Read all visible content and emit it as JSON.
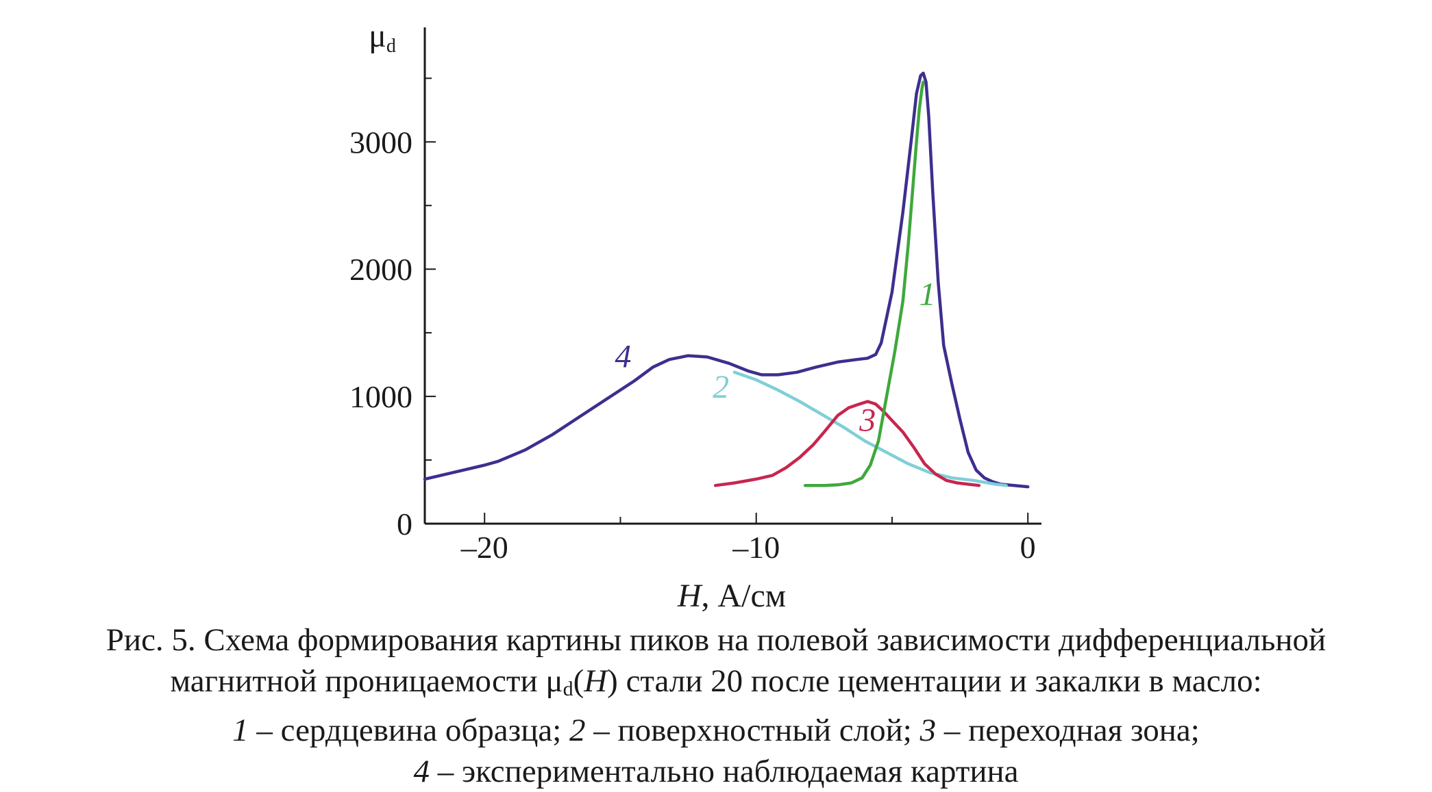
{
  "chart_data": {
    "type": "line",
    "xlabel_var": "H",
    "xlabel_unit": ", А/см",
    "ylabel_main": "μ",
    "ylabel_sub": "d",
    "xlim": [
      -22.2,
      0.5
    ],
    "ylim": [
      0,
      3900
    ],
    "x_ticks": [
      {
        "value": -20,
        "label": "–20"
      },
      {
        "value": -10,
        "label": "–10"
      },
      {
        "value": 0,
        "label": "0"
      }
    ],
    "y_ticks": [
      {
        "value": 0,
        "label": "0"
      },
      {
        "value": 1000,
        "label": "1000"
      },
      {
        "value": 2000,
        "label": "2000"
      },
      {
        "value": 3000,
        "label": "3000"
      }
    ],
    "grid": false,
    "series": [
      {
        "name": "4",
        "color": "#3d2f8f",
        "x": [
          -22.2,
          -21,
          -20,
          -19.5,
          -18.5,
          -17.5,
          -16.5,
          -15.5,
          -14.5,
          -13.8,
          -13.2,
          -12.5,
          -11.8,
          -11,
          -10.3,
          -9.8,
          -9.2,
          -8.5,
          -7.8,
          -7,
          -6.3,
          -5.9,
          -5.6,
          -5.4,
          -5.0,
          -4.6,
          -4.3,
          -4.1,
          -3.95,
          -3.85,
          -3.75,
          -3.65,
          -3.5,
          -3.3,
          -3.1,
          -2.8,
          -2.5,
          -2.2,
          -1.9,
          -1.6,
          -1.3,
          -1.0,
          -0.5,
          0
        ],
        "y": [
          350,
          410,
          460,
          490,
          580,
          700,
          840,
          980,
          1120,
          1230,
          1290,
          1320,
          1310,
          1260,
          1200,
          1170,
          1170,
          1190,
          1230,
          1270,
          1290,
          1300,
          1330,
          1420,
          1820,
          2450,
          3000,
          3380,
          3520,
          3540,
          3470,
          3200,
          2600,
          1900,
          1400,
          1100,
          820,
          560,
          420,
          360,
          330,
          310,
          300,
          290
        ]
      },
      {
        "name": "2",
        "color": "#7fcfd8",
        "x": [
          -10.8,
          -10.0,
          -9.2,
          -8.4,
          -7.6,
          -6.8,
          -6.0,
          -5.2,
          -4.4,
          -3.6,
          -2.8,
          -2.0,
          -1.2,
          -0.8
        ],
        "y": [
          1190,
          1130,
          1050,
          960,
          860,
          760,
          650,
          560,
          470,
          400,
          360,
          340,
          310,
          300
        ]
      },
      {
        "name": "3",
        "color": "#c7264f",
        "x": [
          -11.5,
          -10.8,
          -10.0,
          -9.4,
          -8.9,
          -8.4,
          -7.9,
          -7.5,
          -7.0,
          -6.6,
          -6.2,
          -5.9,
          -5.6,
          -5.3,
          -5.0,
          -4.6,
          -4.2,
          -3.8,
          -3.4,
          -3.0,
          -2.6,
          -2.2,
          -1.8
        ],
        "y": [
          300,
          320,
          350,
          380,
          440,
          520,
          620,
          720,
          850,
          910,
          940,
          960,
          940,
          880,
          810,
          720,
          600,
          470,
          390,
          340,
          320,
          310,
          300
        ]
      },
      {
        "name": "1",
        "color": "#3fa83c",
        "x": [
          -8.2,
          -7.5,
          -7.0,
          -6.5,
          -6.1,
          -5.8,
          -5.5,
          -5.2,
          -4.9,
          -4.6,
          -4.4,
          -4.25,
          -4.1,
          -4.0,
          -3.9,
          -3.85
        ],
        "y": [
          300,
          300,
          305,
          320,
          360,
          460,
          650,
          1000,
          1350,
          1750,
          2200,
          2600,
          3000,
          3250,
          3420,
          3470
        ]
      }
    ],
    "curve_labels": [
      {
        "text": "4",
        "x": -14.9,
        "y": 1230,
        "color": "#3d2f8f"
      },
      {
        "text": "2",
        "x": -11.3,
        "y": 990,
        "color": "#7fcfd8"
      },
      {
        "text": "3",
        "x": -5.9,
        "y": 730,
        "color": "#c7264f"
      },
      {
        "text": "1",
        "x": -3.7,
        "y": 1720,
        "color": "#3fa83c"
      }
    ]
  },
  "caption": {
    "line1": "Рис. 5. Схема формирования картины пиков на полевой зависимости дифференциальной",
    "line2_a": "магнитной проницаемости μ",
    "line2_sub": "d",
    "line2_var": "H",
    "line2_b": ") стали 20 после цементации и закалки в масло:",
    "line3_n1": "1",
    "line3_t1": " – сердцевина образца; ",
    "line3_n2": "2",
    "line3_t2": " – поверхностный слой; ",
    "line3_n3": "3",
    "line3_t3": " – переходная зона;",
    "line4_n4": "4",
    "line4_t4": " – экспериментально наблюдаемая картина"
  }
}
